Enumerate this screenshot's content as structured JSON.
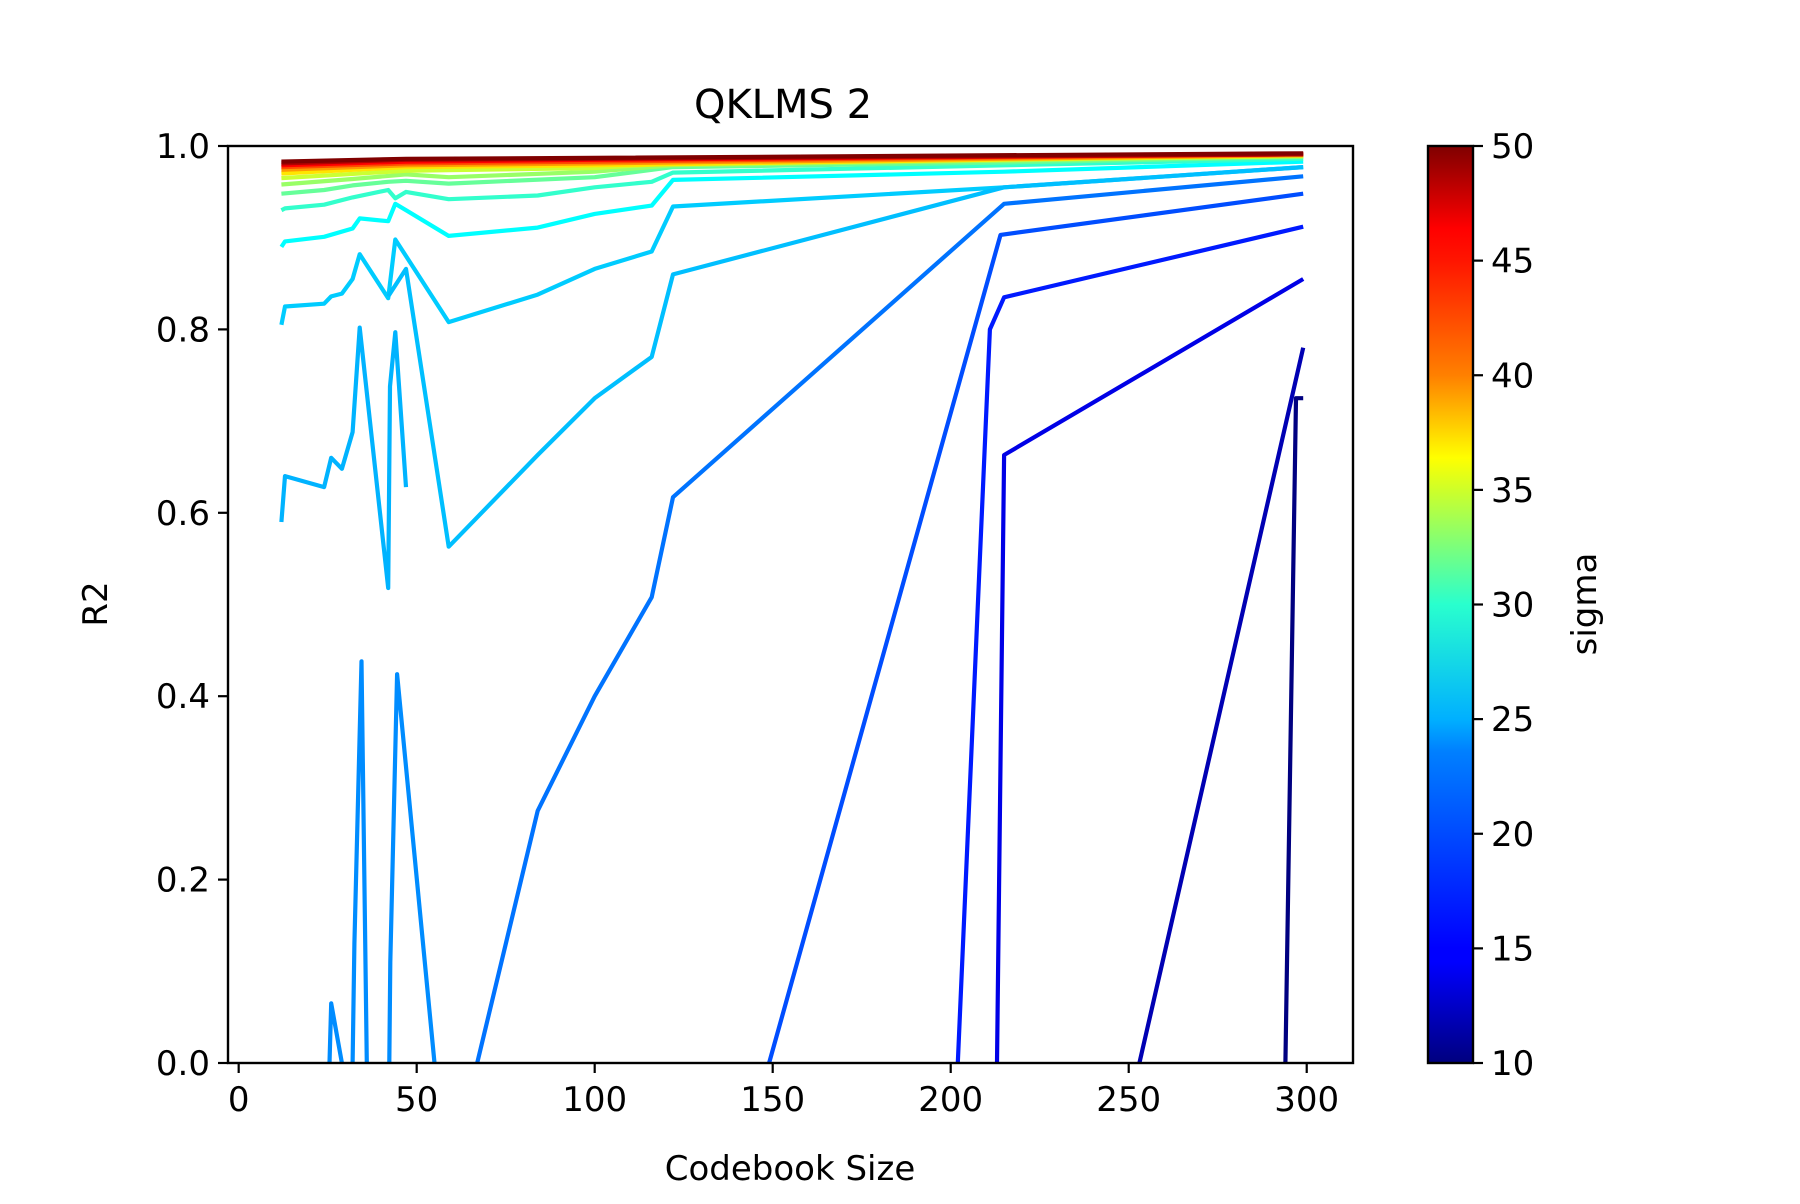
{
  "chart_data": {
    "type": "line",
    "title": "QKLMS 2",
    "xlabel": "Codebook Size",
    "ylabel": "R2",
    "xlim": [
      -3,
      313
    ],
    "ylim": [
      0.0,
      1.0
    ],
    "xticks": [
      0,
      50,
      100,
      150,
      200,
      250,
      300
    ],
    "xtick_labels": [
      "0",
      "50",
      "100",
      "150",
      "200",
      "250",
      "300"
    ],
    "yticks": [
      0.0,
      0.2,
      0.4,
      0.6,
      0.8,
      1.0
    ],
    "ytick_labels": [
      "0.0",
      "0.2",
      "0.4",
      "0.6",
      "0.8",
      "1.0"
    ],
    "grid": false,
    "colorbar": {
      "label": "sigma",
      "colormap": "jet",
      "range": [
        10,
        50
      ],
      "ticks": [
        10,
        15,
        20,
        25,
        30,
        35,
        40,
        45,
        50
      ],
      "tick_labels": [
        "10",
        "15",
        "20",
        "25",
        "30",
        "35",
        "40",
        "45",
        "50"
      ]
    },
    "series": [
      {
        "sigma": 10,
        "points": [
          [
            293,
            -0.05
          ],
          [
            294,
            0.0
          ],
          [
            297,
            0.725
          ],
          [
            299,
            0.725
          ]
        ]
      },
      {
        "sigma": 12,
        "points": [
          [
            252,
            -0.05
          ],
          [
            253,
            0.0
          ],
          [
            299,
            0.78
          ]
        ]
      },
      {
        "sigma": 14,
        "points": [
          [
            212,
            -0.05
          ],
          [
            213,
            0.0
          ],
          [
            215,
            0.663
          ],
          [
            299,
            0.855
          ]
        ]
      },
      {
        "sigma": 16,
        "points": [
          [
            201,
            -0.05
          ],
          [
            202,
            0.0
          ],
          [
            211,
            0.8
          ],
          [
            215,
            0.835
          ],
          [
            299,
            0.912
          ]
        ]
      },
      {
        "sigma": 18,
        "points": [
          [
            148,
            -0.05
          ],
          [
            149,
            0.0
          ],
          [
            214,
            0.903
          ],
          [
            299,
            0.948
          ]
        ]
      },
      {
        "sigma": 19.5,
        "points": [
          [
            66,
            -0.05
          ],
          [
            67,
            0.0
          ],
          [
            84,
            0.275
          ],
          [
            100,
            0.4
          ],
          [
            116,
            0.508
          ],
          [
            122,
            0.617
          ],
          [
            215,
            0.937
          ],
          [
            299,
            0.967
          ]
        ]
      },
      {
        "sigma": 20.5,
        "points": [
          [
            25,
            -0.05
          ],
          [
            25.5,
            0.0
          ],
          [
            26,
            0.065
          ],
          [
            29,
            0.0
          ],
          [
            30,
            -0.05
          ],
          [
            32,
            0.0
          ],
          [
            32.5,
            0.13
          ],
          [
            34.5,
            0.438
          ],
          [
            36,
            0.0
          ],
          [
            36.5,
            -0.05
          ],
          [
            42,
            -0.05
          ],
          [
            42.3,
            0.0
          ],
          [
            42.6,
            0.11
          ],
          [
            44.5,
            0.424
          ],
          [
            55,
            0.0
          ],
          [
            56,
            -0.05
          ]
        ]
      },
      {
        "sigma": 22,
        "points": [
          [
            12,
            0.59
          ],
          [
            13,
            0.64
          ],
          [
            24,
            0.628
          ],
          [
            26,
            0.66
          ],
          [
            29,
            0.648
          ],
          [
            32,
            0.688
          ],
          [
            34,
            0.802
          ],
          [
            42,
            0.518
          ],
          [
            42.5,
            0.738
          ],
          [
            44,
            0.797
          ],
          [
            47,
            0.628
          ]
        ]
      },
      {
        "sigma": 23,
        "points": [
          [
            12,
            0.805
          ],
          [
            13,
            0.825
          ],
          [
            24,
            0.828
          ],
          [
            26,
            0.836
          ],
          [
            29,
            0.839
          ],
          [
            32,
            0.855
          ],
          [
            34,
            0.882
          ],
          [
            42,
            0.834
          ],
          [
            44,
            0.898
          ],
          [
            59,
            0.808
          ],
          [
            84,
            0.838
          ],
          [
            100,
            0.866
          ],
          [
            116,
            0.885
          ],
          [
            122,
            0.934
          ],
          [
            215,
            0.955
          ],
          [
            299,
            0.977
          ]
        ]
      },
      {
        "sigma": 22.5,
        "points": [
          [
            42,
            0.836
          ],
          [
            47,
            0.866
          ],
          [
            59,
            0.563
          ],
          [
            84,
            0.663
          ],
          [
            100,
            0.725
          ],
          [
            116,
            0.77
          ],
          [
            122,
            0.86
          ],
          [
            215,
            0.955
          ],
          [
            299,
            0.977
          ]
        ]
      },
      {
        "sigma": 25,
        "points": [
          [
            12,
            0.89
          ],
          [
            13,
            0.896
          ],
          [
            24,
            0.901
          ],
          [
            32,
            0.91
          ],
          [
            34,
            0.921
          ],
          [
            42,
            0.918
          ],
          [
            44,
            0.937
          ],
          [
            47,
            0.93
          ],
          [
            59,
            0.902
          ],
          [
            84,
            0.911
          ],
          [
            100,
            0.926
          ],
          [
            116,
            0.935
          ],
          [
            122,
            0.963
          ],
          [
            215,
            0.972
          ],
          [
            299,
            0.983
          ]
        ]
      },
      {
        "sigma": 27,
        "points": [
          [
            12,
            0.93
          ],
          [
            13,
            0.932
          ],
          [
            24,
            0.936
          ],
          [
            32,
            0.944
          ],
          [
            42,
            0.952
          ],
          [
            44,
            0.943
          ],
          [
            47,
            0.95
          ],
          [
            59,
            0.942
          ],
          [
            84,
            0.946
          ],
          [
            100,
            0.955
          ],
          [
            116,
            0.961
          ],
          [
            122,
            0.971
          ],
          [
            215,
            0.979
          ],
          [
            299,
            0.986
          ]
        ]
      },
      {
        "sigma": 29,
        "points": [
          [
            12,
            0.948
          ],
          [
            24,
            0.952
          ],
          [
            32,
            0.957
          ],
          [
            42,
            0.961
          ],
          [
            47,
            0.962
          ],
          [
            59,
            0.959
          ],
          [
            100,
            0.966
          ],
          [
            122,
            0.977
          ],
          [
            215,
            0.982
          ],
          [
            299,
            0.988
          ]
        ]
      },
      {
        "sigma": 31,
        "points": [
          [
            12,
            0.958
          ],
          [
            32,
            0.964
          ],
          [
            47,
            0.969
          ],
          [
            59,
            0.966
          ],
          [
            100,
            0.972
          ],
          [
            122,
            0.979
          ],
          [
            215,
            0.984
          ],
          [
            299,
            0.989
          ]
        ]
      },
      {
        "sigma": 33,
        "points": [
          [
            12,
            0.965
          ],
          [
            47,
            0.973
          ],
          [
            100,
            0.976
          ],
          [
            122,
            0.981
          ],
          [
            299,
            0.989
          ]
        ]
      },
      {
        "sigma": 36,
        "points": [
          [
            12,
            0.97
          ],
          [
            47,
            0.977
          ],
          [
            100,
            0.979
          ],
          [
            299,
            0.99
          ]
        ]
      },
      {
        "sigma": 39,
        "points": [
          [
            12,
            0.974
          ],
          [
            47,
            0.979
          ],
          [
            100,
            0.981
          ],
          [
            299,
            0.99
          ]
        ]
      },
      {
        "sigma": 42,
        "points": [
          [
            12,
            0.977
          ],
          [
            47,
            0.981
          ],
          [
            100,
            0.983
          ],
          [
            299,
            0.991
          ]
        ]
      },
      {
        "sigma": 45,
        "points": [
          [
            12,
            0.979
          ],
          [
            47,
            0.983
          ],
          [
            100,
            0.985
          ],
          [
            299,
            0.991
          ]
        ]
      },
      {
        "sigma": 48,
        "points": [
          [
            12,
            0.981
          ],
          [
            47,
            0.985
          ],
          [
            100,
            0.986
          ],
          [
            299,
            0.991
          ]
        ]
      },
      {
        "sigma": 50,
        "points": [
          [
            12,
            0.983
          ],
          [
            47,
            0.986
          ],
          [
            100,
            0.987
          ],
          [
            299,
            0.992
          ]
        ]
      }
    ]
  }
}
